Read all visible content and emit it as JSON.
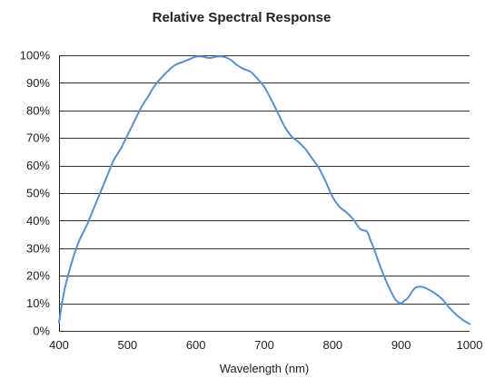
{
  "chart_data": {
    "type": "line",
    "title": "Relative Spectral Response",
    "xlabel": "Wavelength (nm)",
    "ylabel": "",
    "xlim": [
      400,
      1000
    ],
    "ylim": [
      0,
      100
    ],
    "x_ticks": [
      400,
      500,
      600,
      700,
      800,
      900,
      1000
    ],
    "x_tick_labels": [
      "400",
      "500",
      "600",
      "700",
      "800",
      "900",
      "1000"
    ],
    "y_ticks": [
      0,
      10,
      20,
      30,
      40,
      50,
      60,
      70,
      80,
      90,
      100
    ],
    "y_tick_labels": [
      "0%",
      "10%",
      "20%",
      "30%",
      "40%",
      "50%",
      "60%",
      "70%",
      "80%",
      "90%",
      "100%"
    ],
    "grid": "horizontal",
    "legend": "none",
    "series_color": "#5b8fcb",
    "series": [
      {
        "x": [
          400,
          405,
          410,
          420,
          430,
          440,
          450,
          460,
          470,
          480,
          490,
          500,
          510,
          520,
          530,
          540,
          550,
          560,
          570,
          580,
          590,
          600,
          610,
          620,
          630,
          640,
          650,
          660,
          670,
          680,
          690,
          700,
          710,
          720,
          730,
          740,
          750,
          760,
          770,
          780,
          790,
          800,
          810,
          820,
          830,
          840,
          850,
          855,
          860,
          870,
          880,
          890,
          895,
          900,
          905,
          910,
          920,
          930,
          940,
          950,
          960,
          970,
          980,
          990,
          1000
        ],
        "y": [
          3,
          11,
          17,
          26,
          33,
          38,
          44,
          50,
          56,
          62,
          66,
          71,
          76,
          81,
          85,
          89,
          92,
          94.5,
          96.5,
          97.5,
          98.5,
          99.5,
          99.5,
          99,
          99.5,
          99.5,
          98.5,
          96.5,
          95,
          94,
          91.5,
          88.5,
          84,
          79,
          74,
          70.5,
          68.5,
          66,
          62.5,
          59,
          54,
          48.5,
          45,
          43,
          40.5,
          37,
          36,
          33,
          30,
          23,
          17,
          12,
          10.5,
          10,
          11,
          12,
          15.5,
          16,
          15,
          13.5,
          11.5,
          8.5,
          6,
          4,
          2.5
        ]
      }
    ]
  }
}
